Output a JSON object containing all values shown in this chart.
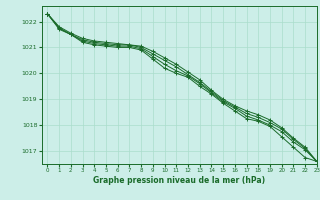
{
  "title": "Graphe pression niveau de la mer (hPa)",
  "bg_color": "#cceee8",
  "grid_color": "#aaddcc",
  "line_color": "#1a6b2a",
  "xlim": [
    -0.5,
    23
  ],
  "ylim": [
    1016.5,
    1022.6
  ],
  "yticks": [
    1017,
    1018,
    1019,
    1020,
    1021,
    1022
  ],
  "xticks": [
    0,
    1,
    2,
    3,
    4,
    5,
    6,
    7,
    8,
    9,
    10,
    11,
    12,
    13,
    14,
    15,
    16,
    17,
    18,
    19,
    20,
    21,
    22,
    23
  ],
  "series": [
    [
      1022.3,
      1021.7,
      1021.5,
      1021.2,
      1021.1,
      1021.05,
      1021.0,
      1021.0,
      1020.9,
      1020.55,
      1020.2,
      1020.0,
      1019.85,
      1019.5,
      1019.2,
      1018.85,
      1018.55,
      1018.25,
      1018.15,
      1017.95,
      1017.55,
      1017.15,
      1016.75,
      1016.6
    ],
    [
      1022.3,
      1021.75,
      1021.5,
      1021.25,
      1021.15,
      1021.1,
      1021.05,
      1021.05,
      1020.95,
      1020.65,
      1020.35,
      1020.1,
      1019.9,
      1019.6,
      1019.25,
      1018.9,
      1018.65,
      1018.35,
      1018.2,
      1018.0,
      1017.75,
      1017.35,
      1017.05,
      1016.6
    ],
    [
      1022.3,
      1021.75,
      1021.5,
      1021.3,
      1021.2,
      1021.15,
      1021.1,
      1021.1,
      1021.0,
      1020.75,
      1020.5,
      1020.25,
      1019.95,
      1019.65,
      1019.3,
      1018.95,
      1018.7,
      1018.45,
      1018.3,
      1018.1,
      1017.85,
      1017.45,
      1017.1,
      1016.6
    ],
    [
      1022.3,
      1021.8,
      1021.55,
      1021.35,
      1021.25,
      1021.2,
      1021.15,
      1021.1,
      1021.05,
      1020.85,
      1020.6,
      1020.35,
      1020.05,
      1019.75,
      1019.35,
      1019.0,
      1018.75,
      1018.55,
      1018.4,
      1018.2,
      1017.9,
      1017.5,
      1017.15,
      1016.6
    ]
  ]
}
